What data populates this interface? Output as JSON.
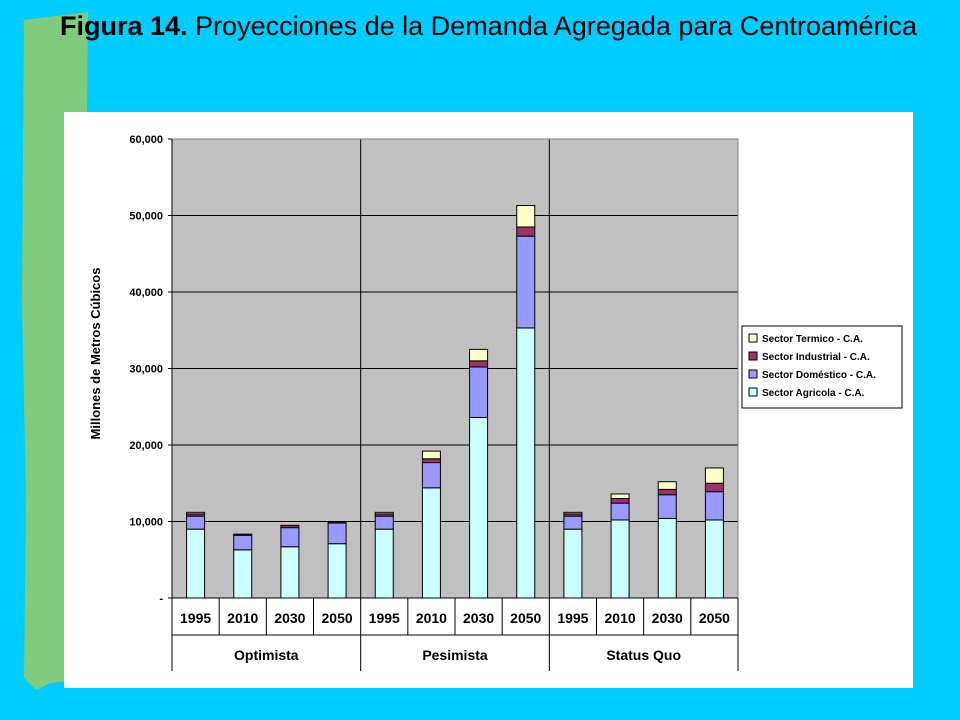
{
  "slide": {
    "title_bold": "Figura 14.",
    "title_rest": " Proyecciones de la Demanda Agregada para Centroamérica"
  },
  "colors": {
    "background": "#00CCFF",
    "stripe": "#7FCC7F",
    "plot_area": "#C0C0C0"
  },
  "chart_data": {
    "type": "bar",
    "stacked": true,
    "title": "",
    "xlabel": "",
    "ylabel": "Millones de Metros Cúbicos",
    "ylim": [
      0,
      60000
    ],
    "yticks": [
      {
        "value": 0,
        "label": "-"
      },
      {
        "value": 10000,
        "label": "10,000"
      },
      {
        "value": 20000,
        "label": "20,000"
      },
      {
        "value": 30000,
        "label": "30,000"
      },
      {
        "value": 40000,
        "label": "40,000"
      },
      {
        "value": 50000,
        "label": "50,000"
      },
      {
        "value": 60000,
        "label": "60,000"
      }
    ],
    "grid": true,
    "legend_position": "right",
    "groups": [
      {
        "name": "Optimista",
        "categories": [
          "1995",
          "2010",
          "2030",
          "2050"
        ]
      },
      {
        "name": "Pesimista",
        "categories": [
          "1995",
          "2010",
          "2030",
          "2050"
        ]
      },
      {
        "name": "Status Quo",
        "categories": [
          "1995",
          "2010",
          "2030",
          "2050"
        ]
      }
    ],
    "series": [
      {
        "name": "Sector Agricola - C.A.",
        "color": "#CCFFFF",
        "values": [
          9000,
          6300,
          6700,
          7100,
          9000,
          14400,
          23600,
          35300,
          9000,
          10200,
          10400,
          10200
        ]
      },
      {
        "name": "Sector Doméstico - C.A.",
        "color": "#9999FF",
        "values": [
          1700,
          1900,
          2500,
          2700,
          1700,
          3300,
          6600,
          12000,
          1700,
          2200,
          3100,
          3700
        ]
      },
      {
        "name": "Sector Industrial - C.A.",
        "color": "#993366",
        "values": [
          300,
          150,
          300,
          150,
          300,
          500,
          800,
          1200,
          300,
          600,
          700,
          1100
        ]
      },
      {
        "name": "Sector Termico - C.A.",
        "color": "#FFFFCC",
        "values": [
          200,
          0,
          0,
          0,
          200,
          1000,
          1500,
          2800,
          200,
          600,
          1000,
          2000
        ]
      }
    ]
  }
}
